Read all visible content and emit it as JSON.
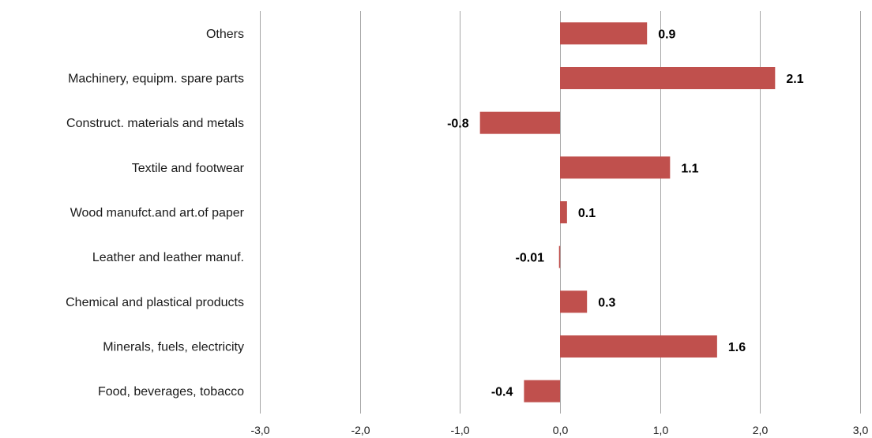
{
  "chart_data": {
    "type": "bar",
    "orientation": "horizontal",
    "categories": [
      "Others",
      "Machinery, equipm. spare parts",
      "Construct. materials and metals",
      "Textile and footwear",
      "Wood manufct.and art.of paper",
      "Leather and leather manuf.",
      "Chemical and plastical products",
      "Minerals, fuels, electricity",
      "Food, beverages, tobacco"
    ],
    "values": [
      0.87,
      2.15,
      -0.8,
      1.1,
      0.07,
      -0.01,
      0.27,
      1.57,
      -0.36
    ],
    "data_labels": [
      "0.9",
      "2.1",
      "-0.8",
      "1.1",
      "0.1",
      "-0.01",
      "0.3",
      "1.6",
      "-0.4"
    ],
    "xlim": [
      -3,
      3
    ],
    "x_ticks": [
      "-3,0",
      "-2,0",
      "-1,0",
      "0,0",
      "1,0",
      "2,0",
      "3,0"
    ],
    "grid": "vertical",
    "bar_color": "#c0504d",
    "gridline_color": "#a6a6a6"
  }
}
